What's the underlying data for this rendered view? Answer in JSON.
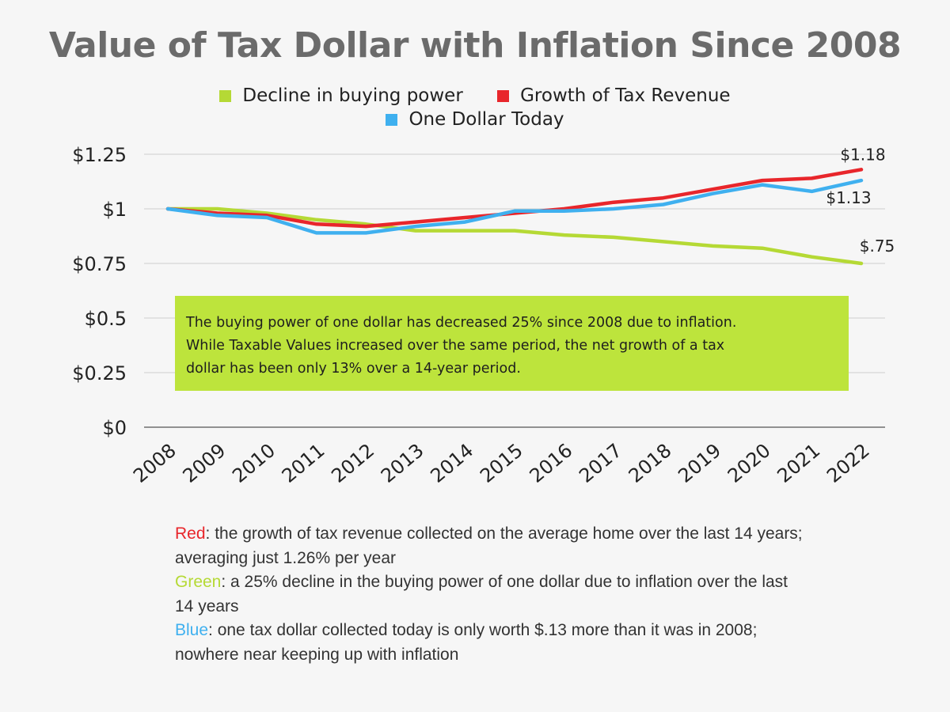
{
  "chart_data": {
    "type": "line",
    "title": "Value of Tax Dollar with Inflation Since 2008",
    "categories": [
      "2008",
      "2009",
      "2010",
      "2011",
      "2012",
      "2013",
      "2014",
      "2015",
      "2016",
      "2017",
      "2018",
      "2019",
      "2020",
      "2021",
      "2022"
    ],
    "series": [
      {
        "name": "Decline in buying power",
        "color": "#b5d935",
        "values": [
          1.0,
          1.0,
          0.98,
          0.95,
          0.93,
          0.9,
          0.9,
          0.9,
          0.88,
          0.87,
          0.85,
          0.83,
          0.82,
          0.78,
          0.75
        ],
        "end_label": "$.75"
      },
      {
        "name": "Growth of Tax Revenue",
        "color": "#e8262b",
        "values": [
          1.0,
          0.98,
          0.97,
          0.93,
          0.92,
          0.94,
          0.96,
          0.98,
          1.0,
          1.03,
          1.05,
          1.09,
          1.13,
          1.14,
          1.18
        ],
        "end_label": "$1.18"
      },
      {
        "name": "One Dollar Today",
        "color": "#3fb0ef",
        "values": [
          1.0,
          0.97,
          0.96,
          0.89,
          0.89,
          0.92,
          0.94,
          0.99,
          0.99,
          1.0,
          1.02,
          1.07,
          1.11,
          1.08,
          1.13
        ],
        "end_label": "$1.13"
      }
    ],
    "yticks": [
      0,
      0.25,
      0.5,
      0.75,
      1,
      1.25
    ],
    "ytick_labels": [
      "$0",
      "$0.25",
      "$0.5",
      "$0.75",
      "$1",
      "$1.25"
    ],
    "ylim": [
      0,
      1.25
    ],
    "grid": true,
    "legend_position": "top-center"
  },
  "annotation": {
    "line1": "The buying power of one dollar has decreased 25% since 2008 due to inflation.",
    "line2": "While Taxable Values increased over the same period, the net growth of a tax",
    "line3": "dollar has been only 13% over a 14-year period."
  },
  "notes": [
    {
      "key": "Red",
      "color": "#e8262b",
      "text": ": the growth of tax revenue collected on the average home over the last 14 years; averaging just 1.26% per year"
    },
    {
      "key": "Green",
      "color": "#b5d935",
      "text": ": a 25% decline in the buying power of one dollar due to inflation over the last 14 years"
    },
    {
      "key": "Blue",
      "color": "#3fb0ef",
      "text": ": one tax dollar collected today is only worth $.13 more than it was in 2008; nowhere near keeping up with inflation"
    }
  ]
}
